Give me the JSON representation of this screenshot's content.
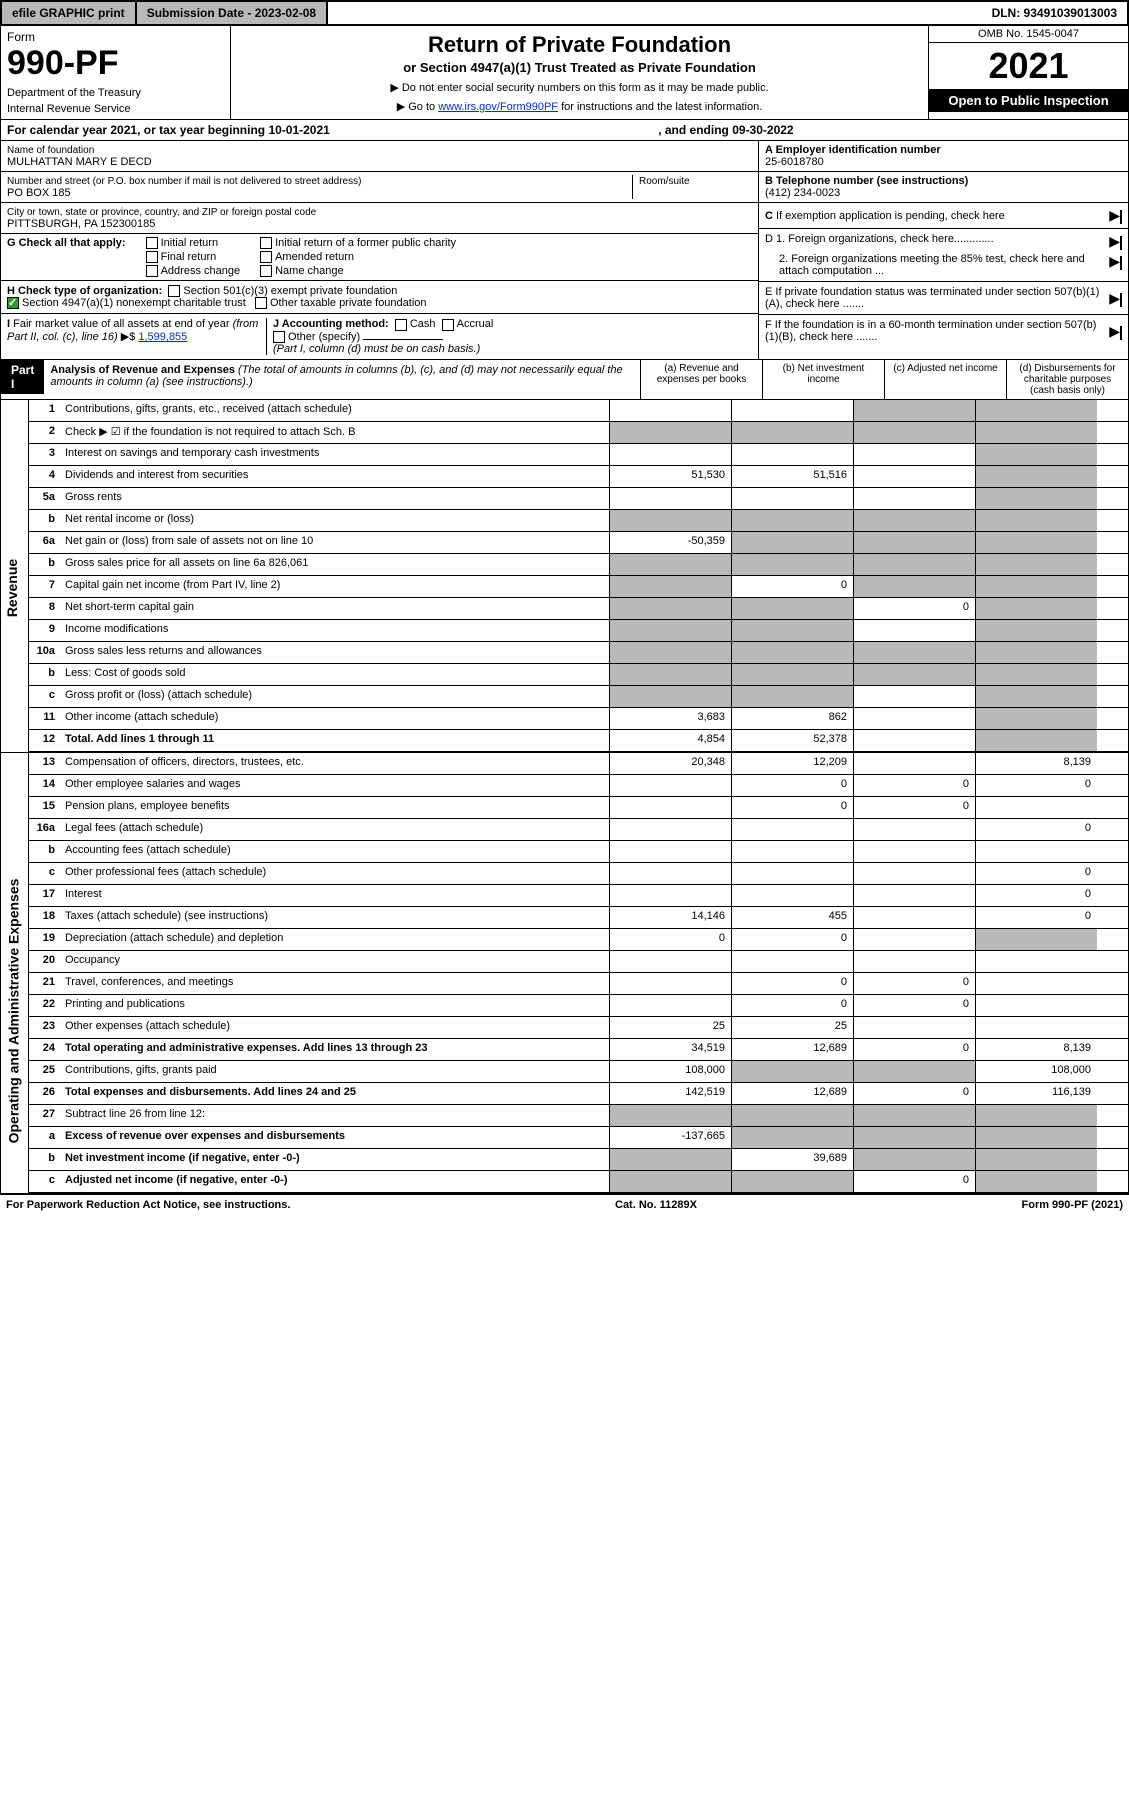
{
  "top": {
    "efile": "efile GRAPHIC print",
    "submission": "Submission Date - 2023-02-08",
    "dln": "DLN: 93491039013003"
  },
  "header": {
    "form": "Form",
    "form_no": "990-PF",
    "dept": "Department of the Treasury",
    "irs": "Internal Revenue Service",
    "title": "Return of Private Foundation",
    "subtitle": "or Section 4947(a)(1) Trust Treated as Private Foundation",
    "instr1": "▶ Do not enter social security numbers on this form as it may be made public.",
    "instr2": "▶ Go to www.irs.gov/Form990PF for instructions and the latest information.",
    "omb": "OMB No. 1545-0047",
    "year": "2021",
    "open": "Open to Public Inspection"
  },
  "cal": {
    "text": "For calendar year 2021, or tax year beginning 10-01-2021",
    "ending": ", and ending 09-30-2022"
  },
  "foundation": {
    "name_label": "Name of foundation",
    "name": "MULHATTAN MARY E DECD",
    "addr_label": "Number and street (or P.O. box number if mail is not delivered to street address)",
    "room_label": "Room/suite",
    "addr": "PO BOX 185",
    "city_label": "City or town, state or province, country, and ZIP or foreign postal code",
    "city": "PITTSBURGH, PA  152300185"
  },
  "right": {
    "a_label": "A Employer identification number",
    "a_val": "25-6018780",
    "b_label": "B Telephone number (see instructions)",
    "b_val": "(412) 234-0023",
    "c_label": "C If exemption application is pending, check here",
    "d1": "D 1. Foreign organizations, check here.............",
    "d2": "2. Foreign organizations meeting the 85% test, check here and attach computation ...",
    "e": "E  If private foundation status was terminated under section 507(b)(1)(A), check here .......",
    "f": "F  If the foundation is in a 60-month termination under section 507(b)(1)(B), check here ......."
  },
  "g": {
    "label": "G Check all that apply:",
    "initial": "Initial return",
    "final": "Final return",
    "address": "Address change",
    "initial_former": "Initial return of a former public charity",
    "amended": "Amended return",
    "name_change": "Name change"
  },
  "h": {
    "label": "H Check type of organization:",
    "s501": "Section 501(c)(3) exempt private foundation",
    "s4947": "Section 4947(a)(1) nonexempt charitable trust",
    "other_tax": "Other taxable private foundation"
  },
  "i": {
    "label": "I Fair market value of all assets at end of year (from Part II, col. (c), line 16) ▶$",
    "val": "1,599,855"
  },
  "j": {
    "label": "J Accounting method:",
    "cash": "Cash",
    "accrual": "Accrual",
    "other": "Other (specify)",
    "note": "(Part I, column (d) must be on cash basis.)"
  },
  "part1": {
    "hdr": "Part I",
    "title": "Analysis of Revenue and Expenses",
    "note": "(The total of amounts in columns (b), (c), and (d) may not necessarily equal the amounts in column (a) (see instructions).)",
    "cols": {
      "a": "(a)   Revenue and expenses per books",
      "b": "(b)   Net investment income",
      "c": "(c)   Adjusted net income",
      "d": "(d)   Disbursements for charitable purposes (cash basis only)"
    }
  },
  "side_labels": {
    "rev": "Revenue",
    "exp": "Operating and Administrative Expenses"
  },
  "lines": [
    {
      "n": "1",
      "lbl": "Contributions, gifts, grants, etc., received (attach schedule)",
      "a": "",
      "b": "",
      "c_shade": true,
      "d_shade": true
    },
    {
      "n": "2",
      "lbl": "Check ▶ ☑ if the foundation is not required to attach Sch. B",
      "b_shade": true,
      "c_shade": true,
      "d_shade": true,
      "a_shade": true
    },
    {
      "n": "3",
      "lbl": "Interest on savings and temporary cash investments",
      "a": "",
      "b": "",
      "c": "",
      "d_shade": true
    },
    {
      "n": "4",
      "lbl": "Dividends and interest from securities",
      "a": "51,530",
      "b": "51,516",
      "c": "",
      "d_shade": true
    },
    {
      "n": "5a",
      "lbl": "Gross rents",
      "a": "",
      "b": "",
      "c": "",
      "d_shade": true
    },
    {
      "n": "b",
      "lbl": "Net rental income or (loss)",
      "a_shade": true,
      "b_shade": true,
      "c_shade": true,
      "d_shade": true
    },
    {
      "n": "6a",
      "lbl": "Net gain or (loss) from sale of assets not on line 10",
      "a": "-50,359",
      "b_shade": true,
      "c_shade": true,
      "d_shade": true
    },
    {
      "n": "b",
      "lbl": "Gross sales price for all assets on line 6a            826,061",
      "a_shade": true,
      "b_shade": true,
      "c_shade": true,
      "d_shade": true
    },
    {
      "n": "7",
      "lbl": "Capital gain net income (from Part IV, line 2)",
      "a_shade": true,
      "b": "0",
      "c_shade": true,
      "d_shade": true
    },
    {
      "n": "8",
      "lbl": "Net short-term capital gain",
      "a_shade": true,
      "b_shade": true,
      "c": "0",
      "d_shade": true
    },
    {
      "n": "9",
      "lbl": "Income modifications",
      "a_shade": true,
      "b_shade": true,
      "c": "",
      "d_shade": true
    },
    {
      "n": "10a",
      "lbl": "Gross sales less returns and allowances",
      "a_shade": true,
      "b_shade": true,
      "c_shade": true,
      "d_shade": true
    },
    {
      "n": "b",
      "lbl": "Less: Cost of goods sold",
      "a_shade": true,
      "b_shade": true,
      "c_shade": true,
      "d_shade": true
    },
    {
      "n": "c",
      "lbl": "Gross profit or (loss) (attach schedule)",
      "a_shade": true,
      "b_shade": true,
      "c": "",
      "d_shade": true
    },
    {
      "n": "11",
      "lbl": "Other income (attach schedule)",
      "a": "3,683",
      "b": "862",
      "c": "",
      "d_shade": true
    },
    {
      "n": "12",
      "lbl": "Total. Add lines 1 through 11",
      "bold": true,
      "a": "4,854",
      "b": "52,378",
      "c": "",
      "d_shade": true
    }
  ],
  "exp_lines": [
    {
      "n": "13",
      "lbl": "Compensation of officers, directors, trustees, etc.",
      "a": "20,348",
      "b": "12,209",
      "c": "",
      "d": "8,139"
    },
    {
      "n": "14",
      "lbl": "Other employee salaries and wages",
      "a": "",
      "b": "0",
      "c": "0",
      "d": "0"
    },
    {
      "n": "15",
      "lbl": "Pension plans, employee benefits",
      "a": "",
      "b": "0",
      "c": "0",
      "d": ""
    },
    {
      "n": "16a",
      "lbl": "Legal fees (attach schedule)",
      "a": "",
      "b": "",
      "c": "",
      "d": "0"
    },
    {
      "n": "b",
      "lbl": "Accounting fees (attach schedule)",
      "a": "",
      "b": "",
      "c": "",
      "d": ""
    },
    {
      "n": "c",
      "lbl": "Other professional fees (attach schedule)",
      "a": "",
      "b": "",
      "c": "",
      "d": "0"
    },
    {
      "n": "17",
      "lbl": "Interest",
      "a": "",
      "b": "",
      "c": "",
      "d": "0"
    },
    {
      "n": "18",
      "lbl": "Taxes (attach schedule) (see instructions)",
      "a": "14,146",
      "b": "455",
      "c": "",
      "d": "0"
    },
    {
      "n": "19",
      "lbl": "Depreciation (attach schedule) and depletion",
      "a": "0",
      "b": "0",
      "c": "",
      "d_shade": true
    },
    {
      "n": "20",
      "lbl": "Occupancy",
      "a": "",
      "b": "",
      "c": "",
      "d": ""
    },
    {
      "n": "21",
      "lbl": "Travel, conferences, and meetings",
      "a": "",
      "b": "0",
      "c": "0",
      "d": ""
    },
    {
      "n": "22",
      "lbl": "Printing and publications",
      "a": "",
      "b": "0",
      "c": "0",
      "d": ""
    },
    {
      "n": "23",
      "lbl": "Other expenses (attach schedule)",
      "a": "25",
      "b": "25",
      "c": "",
      "d": ""
    },
    {
      "n": "24",
      "lbl": "Total operating and administrative expenses. Add lines 13 through 23",
      "bold": true,
      "a": "34,519",
      "b": "12,689",
      "c": "0",
      "d": "8,139"
    },
    {
      "n": "25",
      "lbl": "Contributions, gifts, grants paid",
      "a": "108,000",
      "b_shade": true,
      "c_shade": true,
      "d": "108,000"
    },
    {
      "n": "26",
      "lbl": "Total expenses and disbursements. Add lines 24 and 25",
      "bold": true,
      "a": "142,519",
      "b": "12,689",
      "c": "0",
      "d": "116,139"
    },
    {
      "n": "27",
      "lbl": "Subtract line 26 from line 12:",
      "a_shade": true,
      "b_shade": true,
      "c_shade": true,
      "d_shade": true
    },
    {
      "n": "a",
      "lbl": "Excess of revenue over expenses and disbursements",
      "bold": true,
      "a": "-137,665",
      "b_shade": true,
      "c_shade": true,
      "d_shade": true
    },
    {
      "n": "b",
      "lbl": "Net investment income (if negative, enter -0-)",
      "bold": true,
      "a_shade": true,
      "b": "39,689",
      "c_shade": true,
      "d_shade": true
    },
    {
      "n": "c",
      "lbl": "Adjusted net income (if negative, enter -0-)",
      "bold": true,
      "a_shade": true,
      "b_shade": true,
      "c": "0",
      "d_shade": true
    }
  ],
  "footer": {
    "pra": "For Paperwork Reduction Act Notice, see instructions.",
    "cat": "Cat. No. 11289X",
    "form": "Form 990-PF (2021)"
  },
  "colors": {
    "header_bg": "#b8b8b8",
    "shade": "#b8b8b8",
    "link": "#0033cc",
    "check_green": "#2a9d2a"
  }
}
